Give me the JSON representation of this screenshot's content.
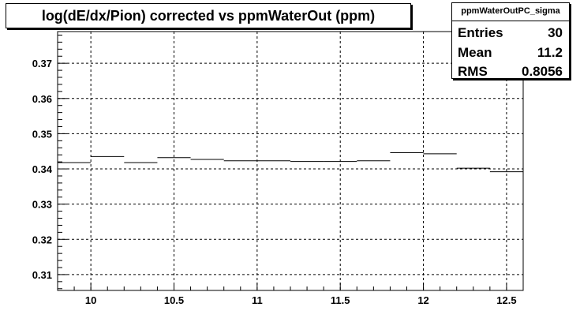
{
  "title": "log(dE/dx/Pion) corrected vs ppmWaterOut (ppm)",
  "stats": {
    "name": "ppmWaterOutPC_sigma",
    "rows": [
      {
        "label": "Entries",
        "value": "30"
      },
      {
        "label": "Mean",
        "value": "11.2"
      },
      {
        "label": "RMS",
        "value": "0.8056"
      }
    ]
  },
  "chart_data": {
    "type": "line",
    "style": "histogram-steps",
    "title": "log(dE/dx/Pion) corrected vs ppmWaterOut (ppm)",
    "xlabel": "",
    "ylabel": "",
    "xlim": [
      9.8,
      12.6
    ],
    "ylim": [
      0.3055,
      0.379
    ],
    "grid": true,
    "grid_style": "dashed",
    "xticks": [
      10,
      10.5,
      11,
      11.5,
      12,
      12.5
    ],
    "xtick_labels": [
      "10",
      "10.5",
      "11",
      "11.5",
      "12",
      "12.5"
    ],
    "yticks": [
      0.31,
      0.32,
      0.33,
      0.34,
      0.35,
      0.36,
      0.37
    ],
    "ytick_labels": [
      "0.31",
      "0.32",
      "0.33",
      "0.34",
      "0.35",
      "0.36",
      "0.37"
    ],
    "bin_edges": [
      9.8,
      10.0,
      10.2,
      10.4,
      10.6,
      10.8,
      11.0,
      11.2,
      11.4,
      11.6,
      11.8,
      12.0,
      12.2,
      12.4,
      12.6
    ],
    "values": [
      0.3418,
      0.3435,
      0.3418,
      0.3432,
      0.3427,
      0.3423,
      0.3423,
      0.3421,
      0.3421,
      0.3423,
      0.3446,
      0.3443,
      0.3402,
      0.3392
    ]
  }
}
